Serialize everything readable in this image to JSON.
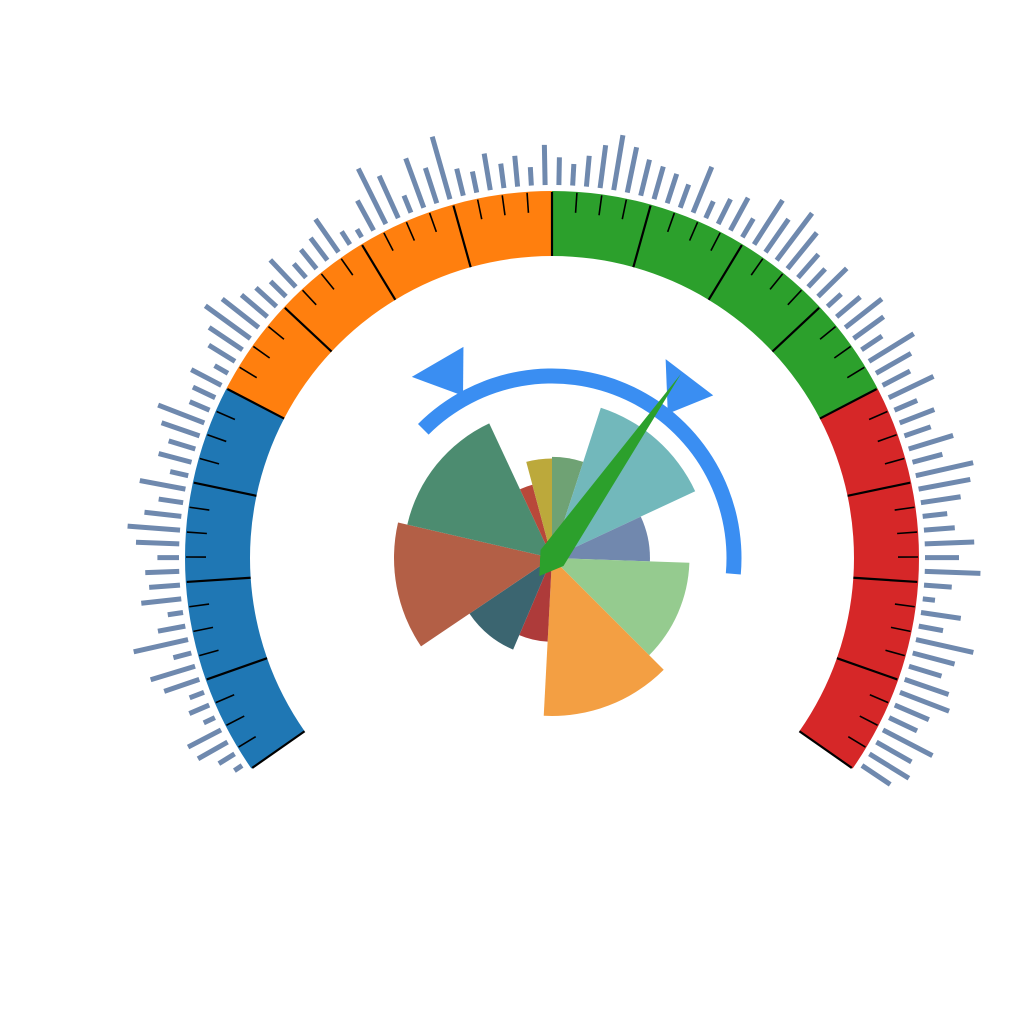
{
  "chart_data": {
    "type": "gauge",
    "gauge": {
      "range": [
        0,
        100
      ],
      "sweep_degrees": 250,
      "bands": [
        {
          "from": 0,
          "to": 25,
          "color": "#1f77b4"
        },
        {
          "from": 25,
          "to": 50,
          "color": "#ff7f0e"
        },
        {
          "from": 50,
          "to": 75,
          "color": "#2ca02c"
        },
        {
          "from": 75,
          "to": 100,
          "color": "#d62728"
        }
      ],
      "major_tick_step": 6.25,
      "minor_tick_step": 1.5625,
      "needle_value": 64,
      "needle_color": "#2ca02c",
      "target_arc": {
        "from": 32,
        "to": 88,
        "color": "#3a8ef2"
      },
      "markers": [
        {
          "value": 38.5,
          "color": "#3a8ef2"
        },
        {
          "value": 65.5,
          "color": "#3a8ef2"
        }
      ]
    },
    "outer_bars": {
      "color": "#6f89ae",
      "values": [
        0.1,
        0.25,
        0.5,
        0.55,
        0.15,
        0.3,
        0.2,
        0.55,
        0.7,
        0.25,
        0.85,
        0.4,
        0.2,
        0.6,
        0.45,
        0.5,
        0.3,
        0.65,
        0.8,
        0.55,
        0.35,
        0.7,
        0.25,
        0.5,
        0.4,
        0.6,
        0.75,
        0.3,
        0.35,
        0.5,
        0.2,
        0.45,
        0.6,
        0.85,
        0.7,
        0.5,
        0.4,
        0.3,
        0.55,
        0.25,
        0.35,
        0.4,
        0.6,
        0.2,
        0.1,
        0.5,
        0.95,
        0.7,
        0.25,
        0.8,
        0.55,
        1.0,
        0.4,
        0.3,
        0.55,
        0.35,
        0.45,
        0.25,
        0.6,
        0.4,
        0.3,
        0.45,
        0.65,
        0.85,
        0.7,
        0.55,
        0.5,
        0.45,
        0.35,
        0.75,
        0.25,
        0.4,
        0.55,
        0.3,
        0.8,
        0.6,
        0.9,
        0.7,
        0.45,
        0.35,
        0.6,
        0.25,
        0.45,
        0.7,
        0.55,
        0.35,
        0.8,
        0.6,
        0.45,
        0.75,
        0.35,
        0.55,
        0.4,
        0.7,
        0.45,
        0.9,
        0.8,
        0.6,
        0.35,
        0.45,
        0.75,
        0.5,
        0.85,
        0.4,
        0.15,
        0.6,
        0.35,
        0.9,
        0.65,
        0.5,
        0.7,
        0.8,
        0.55,
        0.45,
        0.85,
        0.6,
        0.7,
        0.5
      ]
    },
    "inner_rose": {
      "sectors": [
        {
          "start": 0,
          "end": 18,
          "value": 0.64,
          "color": "#6fa274"
        },
        {
          "start": 18,
          "end": 65,
          "value": 1.0,
          "color": "#72b8bb"
        },
        {
          "start": 65,
          "end": 92,
          "value": 0.62,
          "color": "#7188ae"
        },
        {
          "start": 92,
          "end": 135,
          "value": 0.87,
          "color": "#95cb8f"
        },
        {
          "start": 135,
          "end": 183,
          "value": 1.0,
          "color": "#f39f43"
        },
        {
          "start": 183,
          "end": 203,
          "value": 0.53,
          "color": "#ae3b3a"
        },
        {
          "start": 203,
          "end": 236,
          "value": 0.63,
          "color": "#3b6570"
        },
        {
          "start": 236,
          "end": 283,
          "value": 1.0,
          "color": "#b35f46"
        },
        {
          "start": 283,
          "end": 335,
          "value": 0.94,
          "color": "#4c8c70"
        },
        {
          "start": 335,
          "end": 345,
          "value": 0.48,
          "color": "#b8483a"
        },
        {
          "start": 345,
          "end": 360,
          "value": 0.63,
          "color": "#bca93b"
        }
      ]
    }
  }
}
